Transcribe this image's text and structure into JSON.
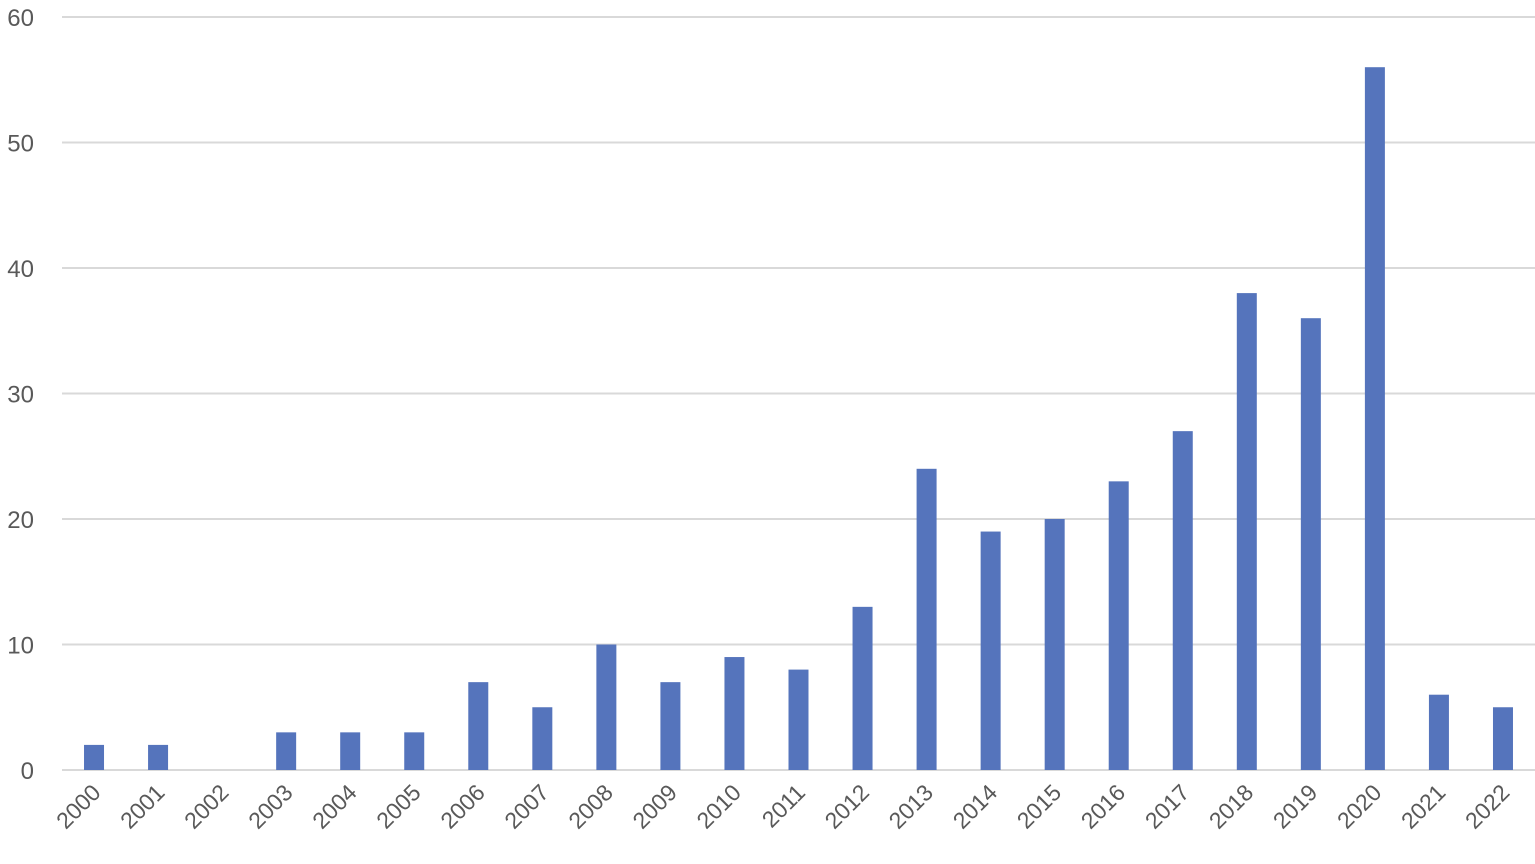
{
  "chart_data": {
    "type": "bar",
    "title": "",
    "xlabel": "",
    "ylabel": "",
    "categories": [
      "2000",
      "2001",
      "2002",
      "2003",
      "2004",
      "2005",
      "2006",
      "2007",
      "2008",
      "2009",
      "2010",
      "2011",
      "2012",
      "2013",
      "2014",
      "2015",
      "2016",
      "2017",
      "2018",
      "2019",
      "2020",
      "2021",
      "2022"
    ],
    "values": [
      2,
      2,
      0,
      3,
      3,
      3,
      7,
      5,
      10,
      7,
      9,
      8,
      13,
      24,
      19,
      20,
      23,
      27,
      38,
      36,
      56,
      6,
      5
    ],
    "ylim": [
      0,
      60
    ],
    "yticks": [
      "0",
      "10",
      "20",
      "30",
      "40",
      "50",
      "60"
    ],
    "grid": true,
    "legend": "none",
    "colors": {
      "bar": "#5574BC",
      "grid": "#D9D9D9",
      "axis": "#D9D9D9",
      "text": "#595959"
    }
  }
}
